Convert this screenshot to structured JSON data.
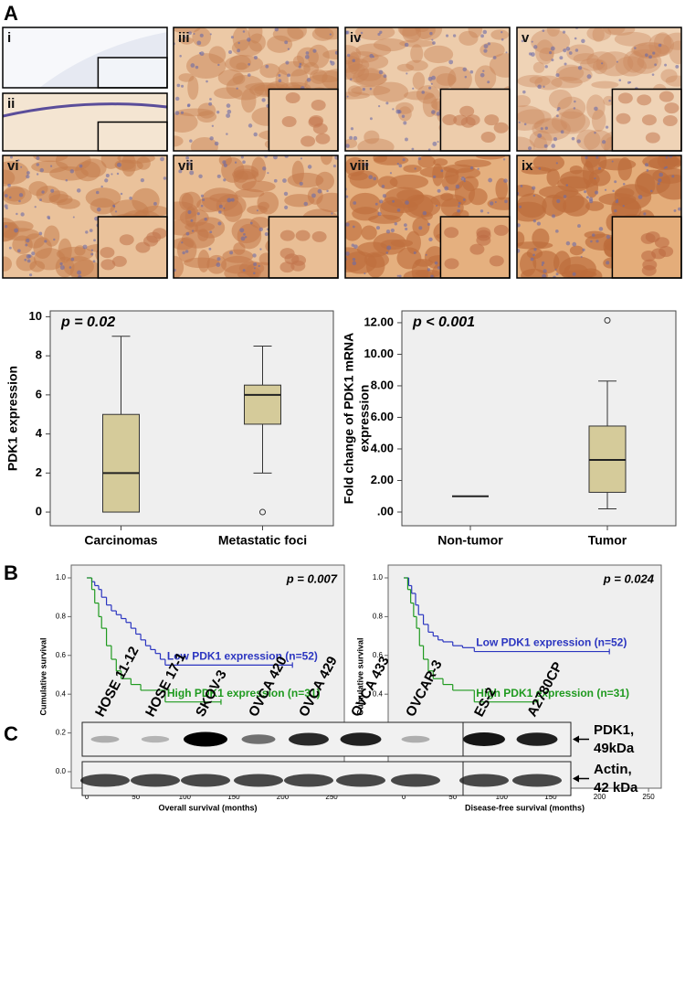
{
  "panel_labels": [
    "A",
    "B",
    "C"
  ],
  "tiles": [
    "i",
    "ii",
    "iii",
    "iv",
    "v",
    "vi",
    "vii",
    "viii",
    "ix"
  ],
  "chart_data": [
    {
      "type": "box",
      "annotation": "p = 0.02",
      "ylabel": [
        "PDK1 expression"
      ],
      "categories": [
        "Carcinomas",
        "Metastatic foci"
      ],
      "color": "#d5cb9a",
      "boxes": [
        {
          "min": 0,
          "q1": 0,
          "median": 2,
          "q3": 5,
          "max": 9,
          "outliers": []
        },
        {
          "min": 2,
          "q1": 4.5,
          "median": 6,
          "q3": 6.5,
          "max": 8.5,
          "outliers": [
            0
          ]
        }
      ],
      "ylim": [
        -0.7,
        10.3
      ],
      "yticks": [
        0,
        2,
        4,
        6,
        8,
        10
      ]
    },
    {
      "type": "box",
      "annotation": "p < 0.001",
      "ylabel": [
        "Fold change of PDK1 mRNA",
        "expression"
      ],
      "categories": [
        "Non-tumor",
        "Tumor"
      ],
      "color": "#d5cb9a",
      "boxes": [
        {
          "min": 1,
          "q1": 1,
          "median": 1,
          "q3": 1,
          "max": 1,
          "outliers": []
        },
        {
          "min": 0.2,
          "q1": 1.25,
          "median": 3.3,
          "q3": 5.45,
          "max": 8.3,
          "outliers": [
            12.15
          ]
        }
      ],
      "ylim": [
        -0.87,
        12.75
      ],
      "yticks": [
        {
          "value": 0,
          "label": ".00"
        },
        {
          "value": 2,
          "label": "2.00"
        },
        {
          "value": 4,
          "label": "4.00"
        },
        {
          "value": 6,
          "label": "6.00"
        },
        {
          "value": 8,
          "label": "8.00"
        },
        {
          "value": 10,
          "label": "10.00"
        },
        {
          "value": 12,
          "label": "12.00"
        }
      ]
    },
    {
      "type": "step",
      "annotation": "p = 0.007",
      "xlabel": "Overall survival (months)",
      "ylabel": "Cumulative survival",
      "series": [
        {
          "name": "Low PDK1 expression (n=52)",
          "color": "#2b35c0",
          "x": [
            0,
            5,
            8,
            12,
            15,
            20,
            25,
            30,
            35,
            40,
            45,
            50,
            55,
            60,
            65,
            70,
            75,
            80,
            210
          ],
          "values": [
            1.0,
            0.98,
            0.96,
            0.94,
            0.9,
            0.86,
            0.83,
            0.81,
            0.79,
            0.77,
            0.74,
            0.71,
            0.68,
            0.65,
            0.63,
            0.61,
            0.58,
            0.55,
            0.55
          ]
        },
        {
          "name": "High PDK1 expression (n=31)",
          "color": "#1f9a1f",
          "x": [
            0,
            5,
            8,
            12,
            15,
            20,
            25,
            30,
            35,
            45,
            55,
            80,
            137
          ],
          "values": [
            1.0,
            0.94,
            0.87,
            0.8,
            0.74,
            0.65,
            0.58,
            0.52,
            0.48,
            0.45,
            0.42,
            0.36,
            0.36
          ]
        }
      ],
      "xlim": [
        -16,
        263
      ],
      "xticks": [
        0,
        50,
        100,
        150,
        200,
        250
      ],
      "ylim": [
        -0.085,
        1.066
      ],
      "yticks": [
        {
          "value": 0,
          "label": "0.0"
        },
        {
          "value": 0.2,
          "label": "0.2"
        },
        {
          "value": 0.4,
          "label": "0.4"
        },
        {
          "value": 0.6,
          "label": "0.6"
        },
        {
          "value": 0.8,
          "label": "0.8"
        },
        {
          "value": 1,
          "label": "1.0"
        }
      ]
    },
    {
      "type": "step",
      "annotation": "p = 0.024",
      "xlabel": "Disease-free survival (months)",
      "ylabel": "Cumulative survival",
      "series": [
        {
          "name": "Low PDK1 expression (n=52)",
          "color": "#2b35c0",
          "x": [
            0,
            5,
            8,
            12,
            15,
            20,
            25,
            30,
            35,
            40,
            50,
            60,
            72,
            210
          ],
          "values": [
            1.0,
            0.96,
            0.92,
            0.86,
            0.81,
            0.76,
            0.72,
            0.7,
            0.68,
            0.67,
            0.65,
            0.64,
            0.62,
            0.62
          ]
        },
        {
          "name": "High PDK1 expression (n=31)",
          "color": "#1f9a1f",
          "x": [
            0,
            4,
            7,
            10,
            13,
            16,
            20,
            25,
            30,
            40,
            50,
            72,
            137
          ],
          "values": [
            1.0,
            0.94,
            0.87,
            0.8,
            0.74,
            0.65,
            0.58,
            0.52,
            0.48,
            0.45,
            0.42,
            0.36,
            0.36
          ]
        }
      ],
      "xlim": [
        -16,
        263
      ],
      "xticks": [
        0,
        50,
        100,
        150,
        200,
        250
      ],
      "ylim": [
        -0.085,
        1.066
      ],
      "yticks": [
        {
          "value": 0,
          "label": "0.0"
        },
        {
          "value": 0.2,
          "label": "0.2"
        },
        {
          "value": 0.4,
          "label": "0.4"
        },
        {
          "value": 0.6,
          "label": "0.6"
        },
        {
          "value": 0.8,
          "label": "0.8"
        },
        {
          "value": 1,
          "label": "1.0"
        }
      ]
    }
  ],
  "blot": {
    "lanes": [
      "HOSE 11-12",
      "HOSE 17-1",
      "SKOV-3",
      "OVCA 420",
      "OVCA 429",
      "OVCA 433",
      "OVCAR-3",
      "ES-2",
      "A2780CP"
    ],
    "markers": [
      [
        "PDK1,",
        "49kDa"
      ],
      [
        "Actin,",
        "42 kDa"
      ]
    ]
  }
}
